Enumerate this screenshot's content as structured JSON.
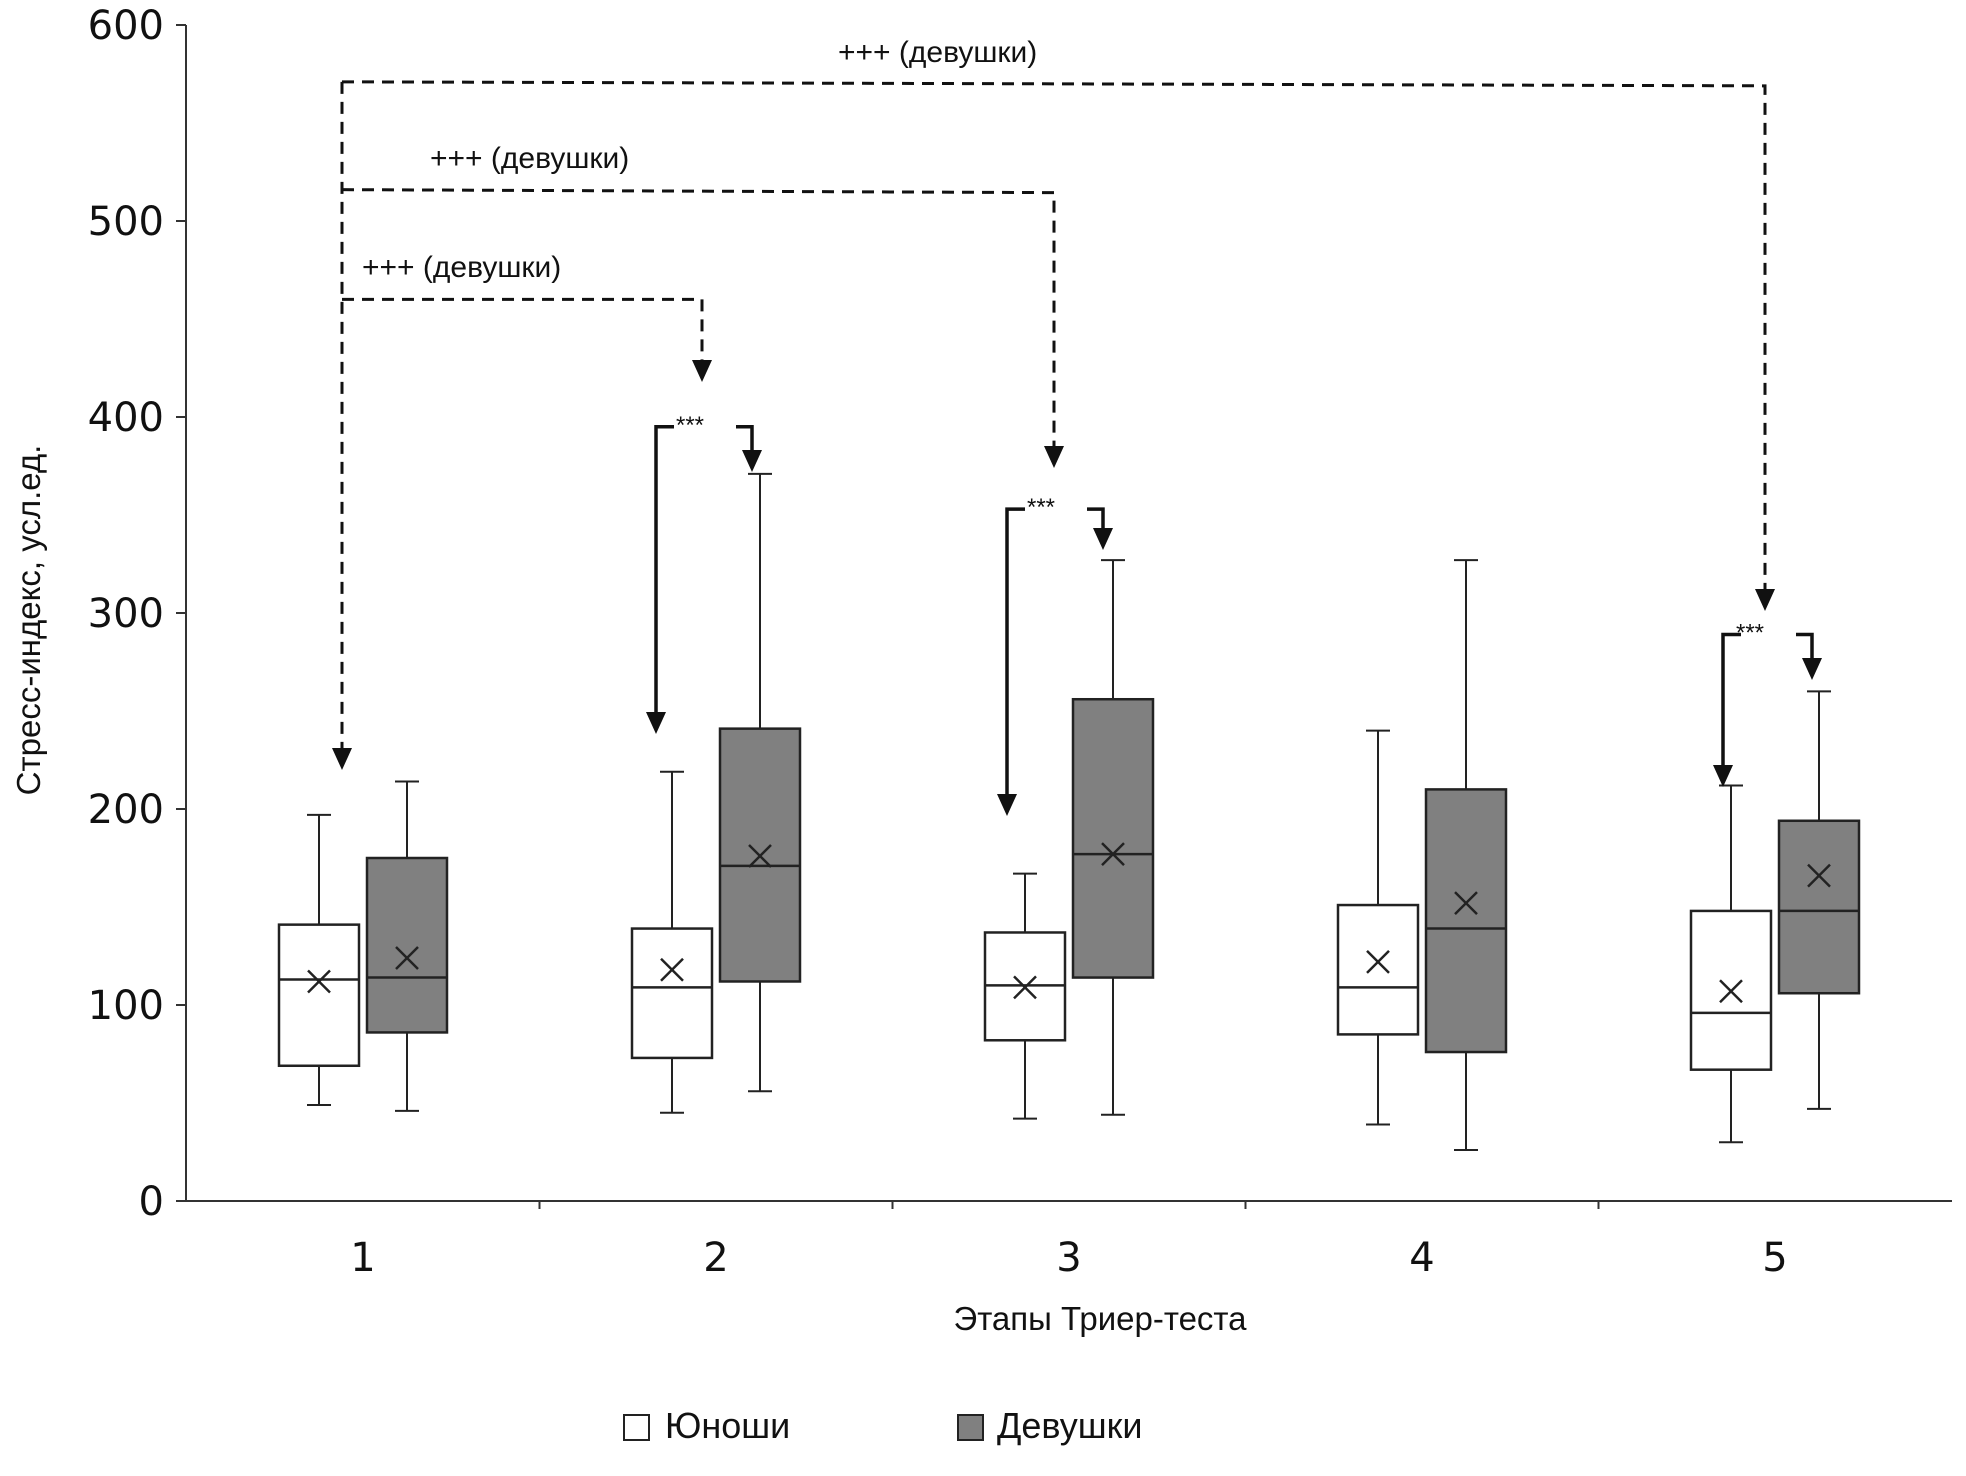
{
  "chart_data": {
    "type": "boxplot",
    "title": "",
    "xlabel": "Этапы Триер-теста",
    "ylabel": "Стресс-индекс, усл.ед.",
    "ylim": [
      0,
      600
    ],
    "yticks": [
      "0",
      "100",
      "200",
      "300",
      "400",
      "500",
      "600"
    ],
    "categories": [
      "1",
      "2",
      "3",
      "4",
      "5"
    ],
    "legend": {
      "placement": "bottom-center"
    },
    "colors": {
      "boys_fill": "#ffffff",
      "girls_fill": "#808080",
      "stroke": "#222222"
    },
    "series": [
      {
        "name": "Юноши",
        "boxes": [
          {
            "min": 49,
            "q1": 69,
            "median": 113,
            "q3": 141,
            "max": 197,
            "mean": 112
          },
          {
            "min": 45,
            "q1": 73,
            "median": 109,
            "q3": 139,
            "max": 219,
            "mean": 118
          },
          {
            "min": 42,
            "q1": 82,
            "median": 110,
            "q3": 137,
            "max": 167,
            "mean": 109
          },
          {
            "min": 39,
            "q1": 85,
            "median": 109,
            "q3": 151,
            "max": 240,
            "mean": 122
          },
          {
            "min": 30,
            "q1": 67,
            "median": 96,
            "q3": 148,
            "max": 212,
            "mean": 107
          }
        ]
      },
      {
        "name": "Девушки",
        "boxes": [
          {
            "min": 46,
            "q1": 86,
            "median": 114,
            "q3": 175,
            "max": 214,
            "mean": 124
          },
          {
            "min": 56,
            "q1": 112,
            "median": 171,
            "q3": 241,
            "max": 371,
            "mean": 176
          },
          {
            "min": 44,
            "q1": 114,
            "median": 177,
            "q3": 256,
            "max": 327,
            "mean": 177
          },
          {
            "min": 26,
            "q1": 76,
            "median": 139,
            "q3": 210,
            "max": 327,
            "mean": 152
          },
          {
            "min": 47,
            "q1": 106,
            "median": 148,
            "q3": 194,
            "max": 260,
            "mean": 166
          }
        ]
      }
    ],
    "annotations": [
      {
        "text": "+++ (девушки)",
        "from_stage": "1",
        "to_stage": "2",
        "level": 460
      },
      {
        "text": "+++ (девушки)",
        "from_stage": "1",
        "to_stage": "3",
        "level": 516
      },
      {
        "text": "+++ (девушки)",
        "from_stage": "1",
        "to_stage": "5",
        "level": 571
      }
    ],
    "significance": [
      {
        "stage": "2",
        "text": "***",
        "level": 395
      },
      {
        "stage": "3",
        "text": "***",
        "level": 353
      },
      {
        "stage": "5",
        "text": "***",
        "level": 289
      }
    ]
  }
}
